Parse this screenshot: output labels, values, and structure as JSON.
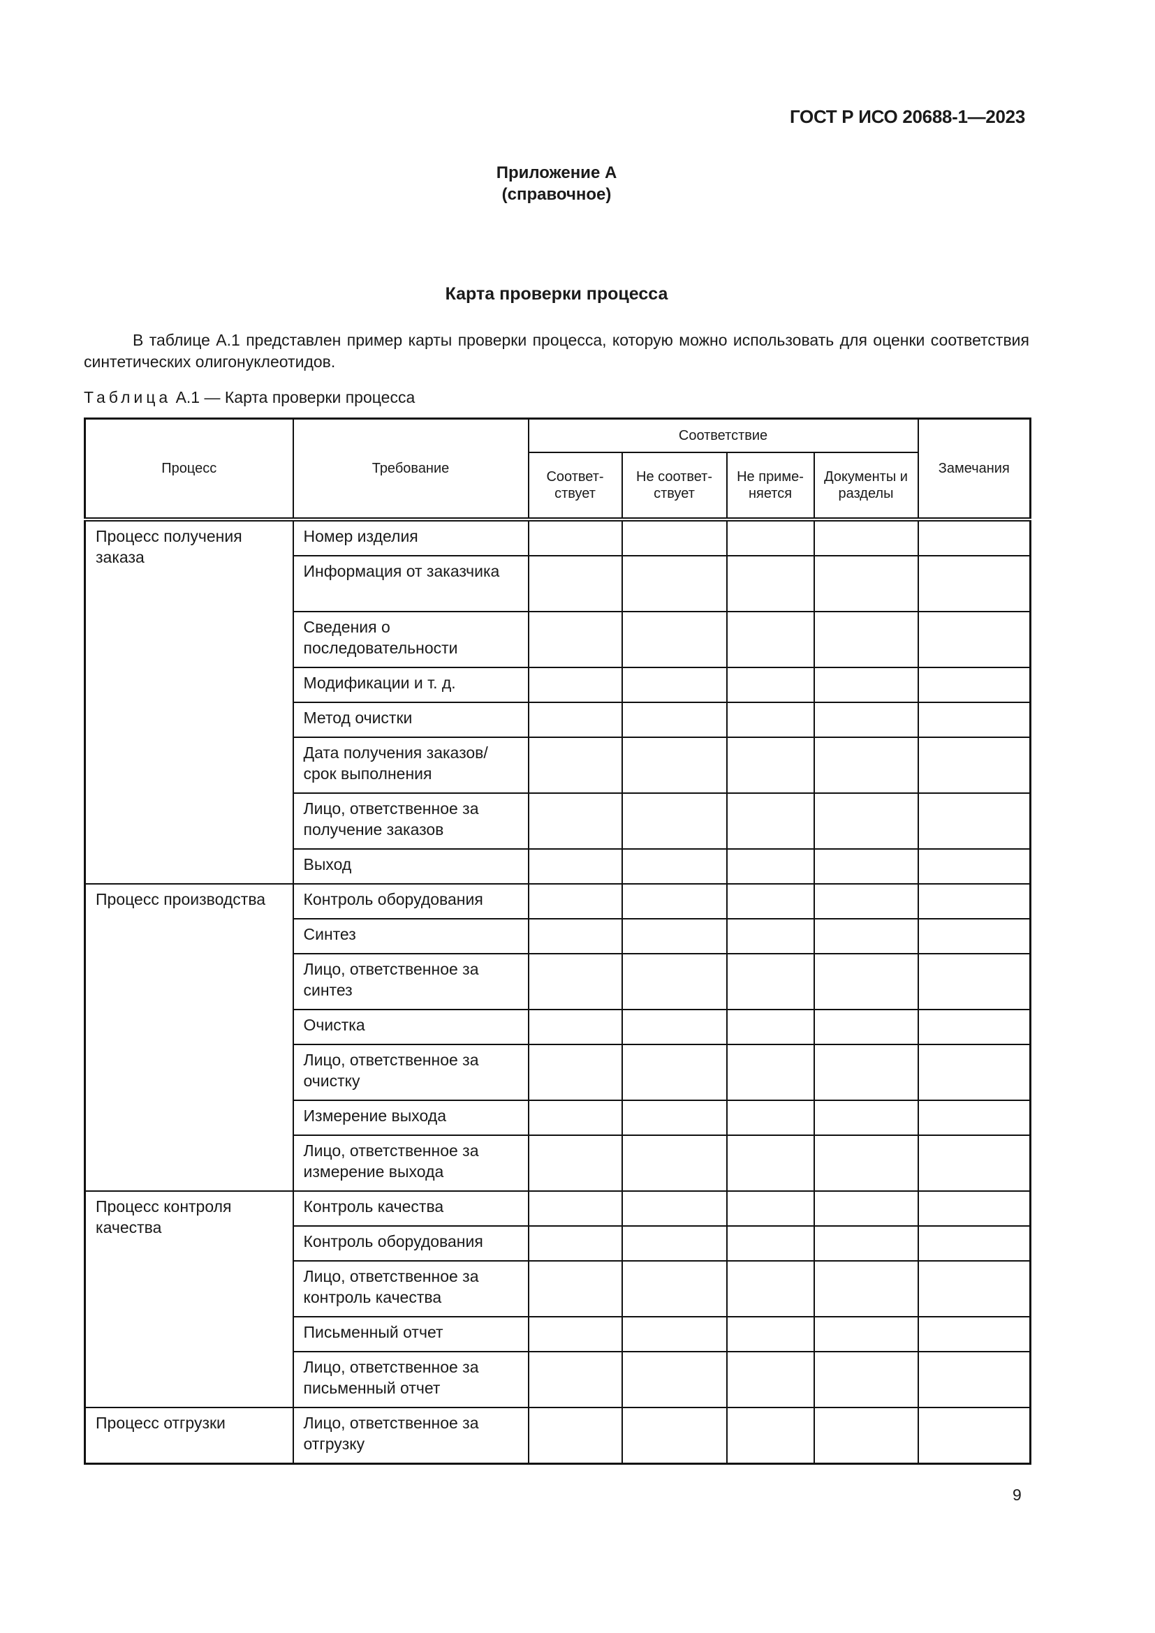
{
  "header": {
    "doc_code": "ГОСТ Р ИСО 20688-1—2023"
  },
  "annex": {
    "title": "Приложение А",
    "subtitle": "(справочное)"
  },
  "section_title": "Карта проверки процесса",
  "paragraph": "В таблице А.1 представлен пример карты проверки процесса, которую можно использовать для оценки соот­ветствия синтетических олигонуклеотидов.",
  "table": {
    "caption_prefix": "Таблица",
    "caption_rest": "А.1 — Карта проверки процесса",
    "headers": {
      "process": "Процесс",
      "requirement": "Требование",
      "compliance": "Соответствие",
      "complies": "Соответ-ствует",
      "not_complies": "Не соответ-ствует",
      "not_applicable": "Не приме-няется",
      "documents": "Документы и разделы",
      "remarks": "Замечания"
    },
    "groups": [
      {
        "process": "Процесс получения заказа",
        "requirements": [
          "Номер изделия",
          "Информация от заказчика",
          "Сведения о последовательности",
          "Модификации и т. д.",
          "Метод очистки",
          "Дата получения заказов/ срок выполнения",
          "Лицо, ответственное за получение заказов",
          "Выход"
        ]
      },
      {
        "process": "Процесс производства",
        "requirements": [
          "Контроль оборудования",
          "Синтез",
          "Лицо, ответственное за синтез",
          "Очистка",
          "Лицо, ответственное за очистку",
          "Измерение выхода",
          "Лицо, ответственное за измерение выхода"
        ]
      },
      {
        "process": "Процесс контроля качества",
        "requirements": [
          "Контроль качества",
          "Контроль оборудования",
          "Лицо, ответственное за контроль качества",
          "Письменный отчет",
          "Лицо, ответственное за письменный отчет"
        ]
      },
      {
        "process": "Процесс отгрузки",
        "requirements": [
          "Лицо, ответственное за отгрузку"
        ]
      }
    ]
  },
  "page_number": "9"
}
